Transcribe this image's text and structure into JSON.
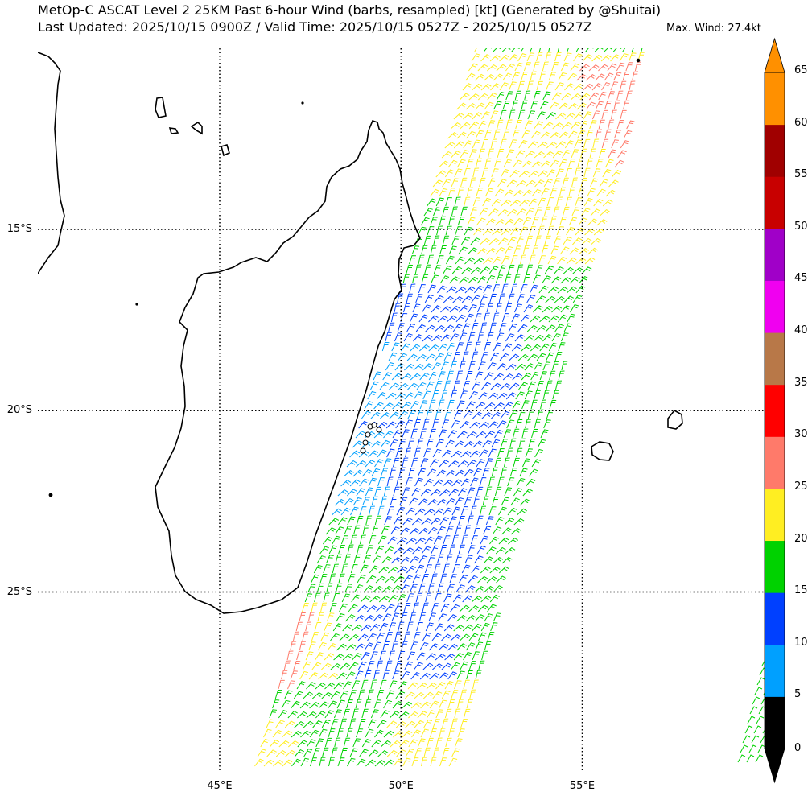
{
  "header": {
    "title_line1": "MetOp-C ASCAT Level 2 25KM Past 6-hour Wind (barbs, resampled) [kt] (Generated by @Shuitai)",
    "title_line2": "Last Updated: 2025/10/15 0900Z / Valid Time: 2025/10/15 0527Z - 2025/10/15 0527Z",
    "max_wind": "Max. Wind: 27.4kt"
  },
  "axes": {
    "lat_labels": [
      "15°S",
      "20°S",
      "25°S"
    ],
    "lat_values": [
      -15,
      -20,
      -25
    ],
    "lon_labels": [
      "45°E",
      "50°E",
      "55°E"
    ],
    "lon_values": [
      45,
      50,
      55
    ]
  },
  "colorbar": {
    "ticks": [
      "0",
      "5",
      "10",
      "15",
      "20",
      "25",
      "30",
      "35",
      "40",
      "45",
      "50",
      "55",
      "60",
      "65"
    ],
    "bins": [
      {
        "lo": 0,
        "hi": 5,
        "color": "#000000"
      },
      {
        "lo": 5,
        "hi": 10,
        "color": "#00a0ff"
      },
      {
        "lo": 10,
        "hi": 15,
        "color": "#0040ff"
      },
      {
        "lo": 15,
        "hi": 20,
        "color": "#00d200"
      },
      {
        "lo": 20,
        "hi": 25,
        "color": "#ffee22"
      },
      {
        "lo": 25,
        "hi": 30,
        "color": "#ff7a6a"
      },
      {
        "lo": 30,
        "hi": 35,
        "color": "#ff0000"
      },
      {
        "lo": 35,
        "hi": 40,
        "color": "#b87848"
      },
      {
        "lo": 40,
        "hi": 45,
        "color": "#f000f0"
      },
      {
        "lo": 45,
        "hi": 50,
        "color": "#a000c8"
      },
      {
        "lo": 50,
        "hi": 55,
        "color": "#c80000"
      },
      {
        "lo": 55,
        "hi": 60,
        "color": "#a00000"
      },
      {
        "lo": 60,
        "hi": 65,
        "color": "#ff9000"
      }
    ],
    "extend_low_color": "#000000",
    "extend_high_color": "#ff9000"
  },
  "map": {
    "grid_style": "dotted",
    "land_outline_color": "#000000"
  }
}
